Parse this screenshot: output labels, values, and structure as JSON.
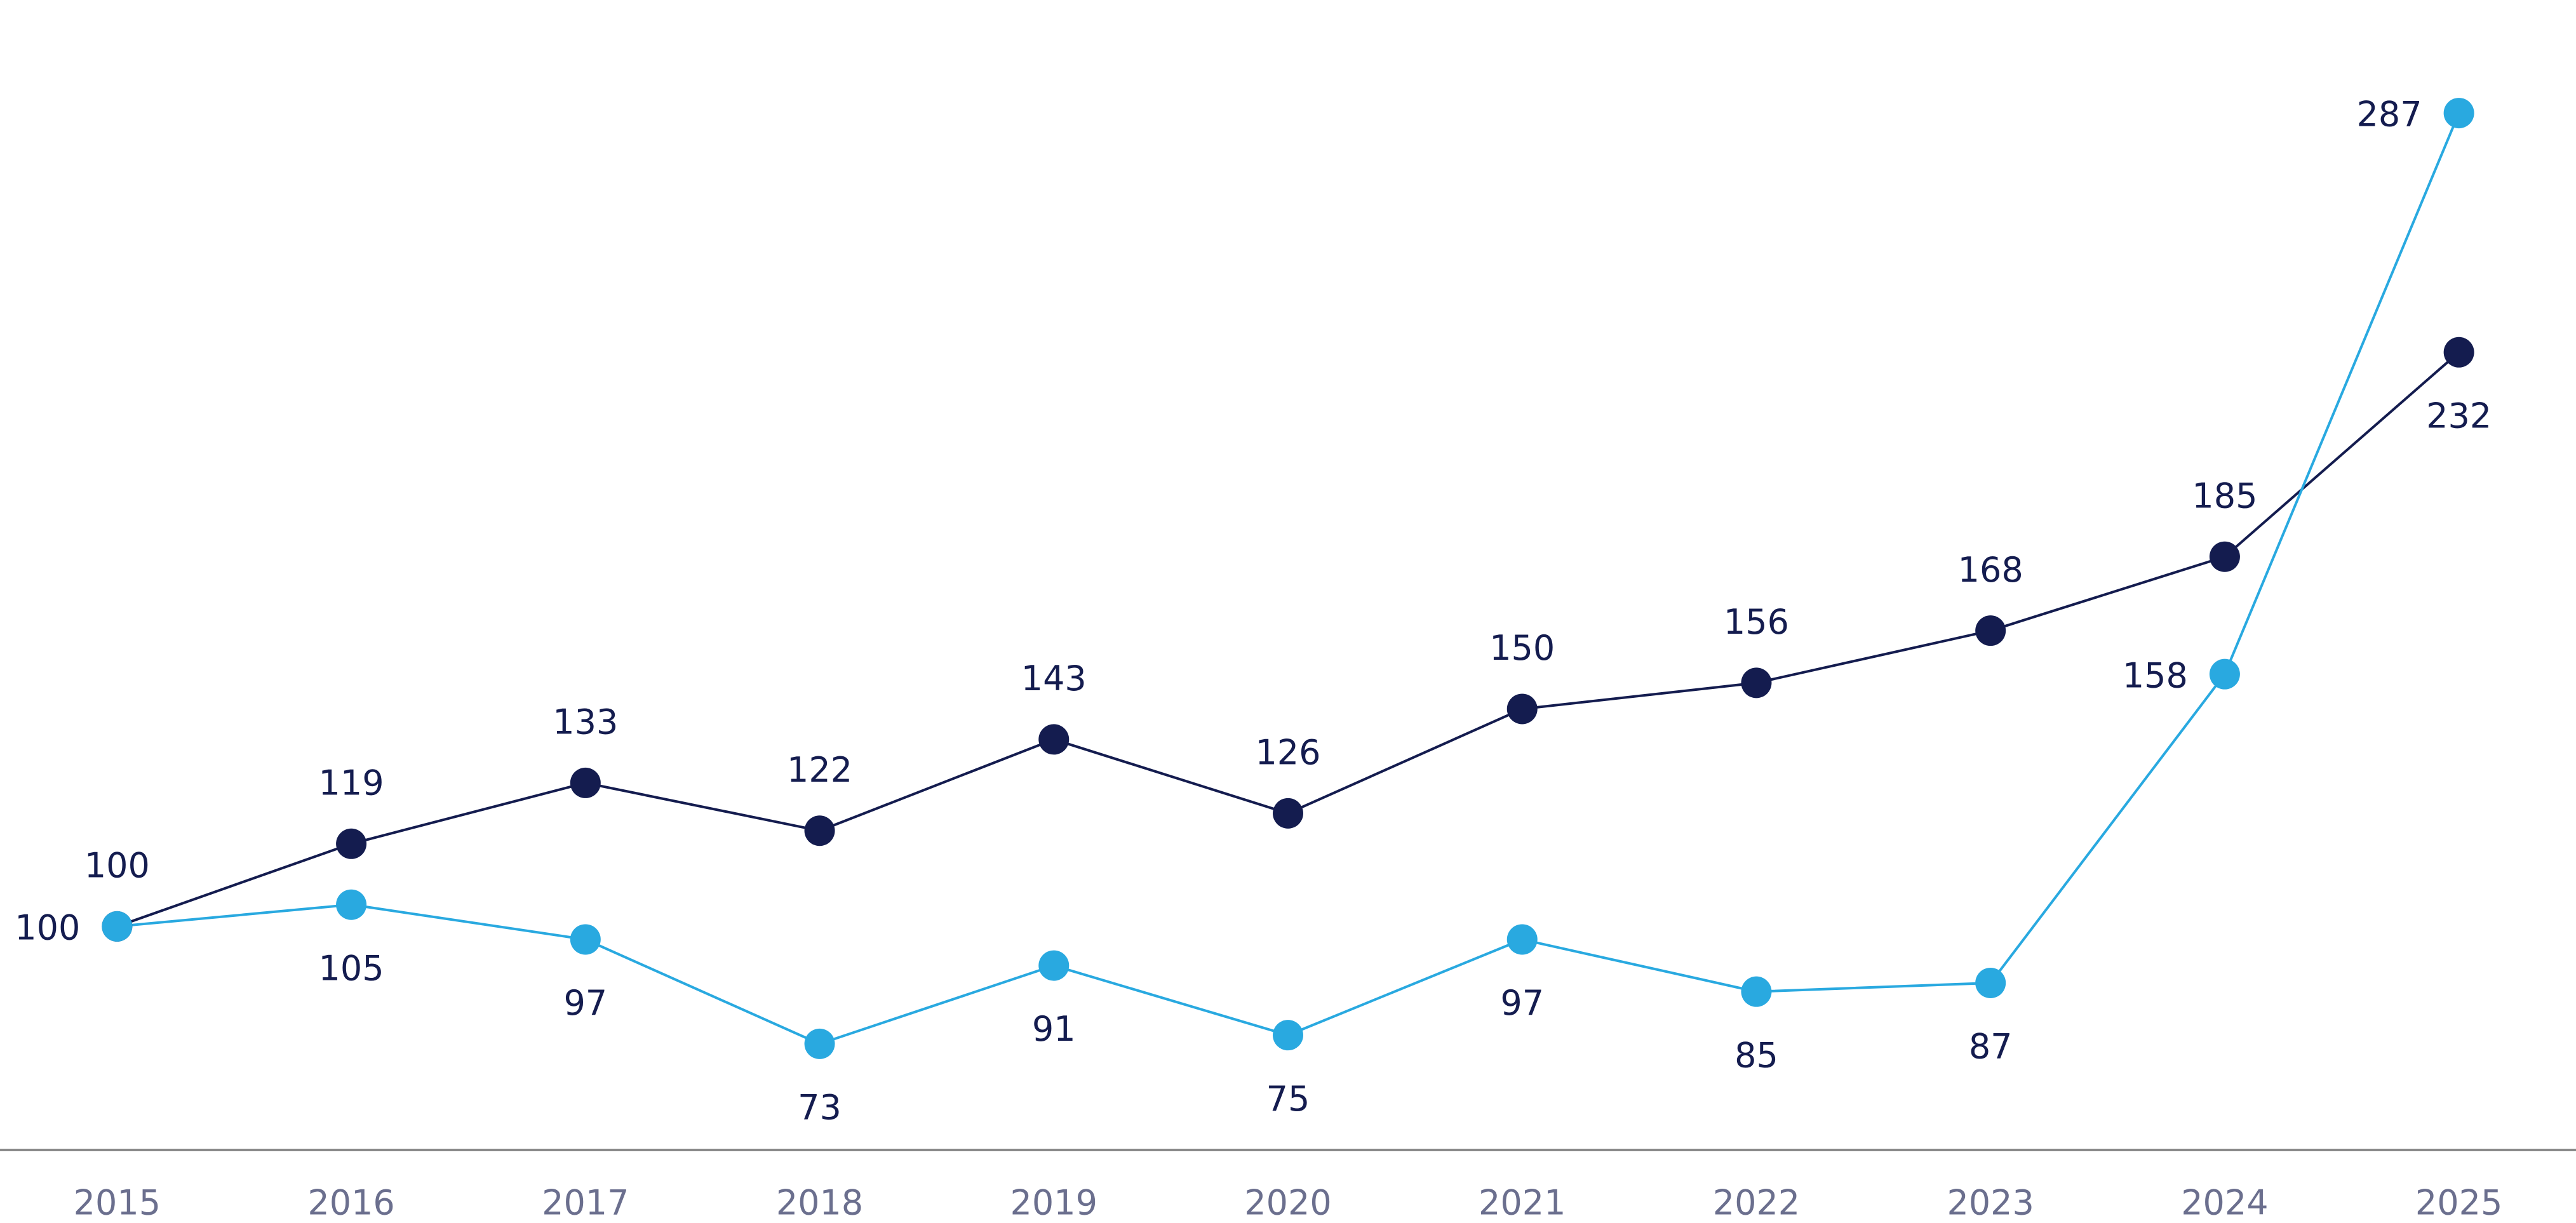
{
  "chart_data": {
    "type": "line",
    "x": [
      2015,
      2016,
      2017,
      2018,
      2019,
      2020,
      2021,
      2022,
      2023,
      2024,
      2025
    ],
    "series": [
      {
        "color": "#141c4f",
        "values": [
          100,
          119,
          133,
          122,
          143,
          126,
          150,
          156,
          168,
          185,
          232
        ]
      },
      {
        "color": "#29a9e0",
        "values": [
          100,
          105,
          97,
          73,
          91,
          75,
          97,
          85,
          87,
          158,
          287
        ]
      }
    ],
    "xlim": [
      2014.5,
      2025.5
    ],
    "xticks": [
      2015,
      2016,
      2017,
      2018,
      2019,
      2020,
      2021,
      2022,
      2023,
      2024,
      2025
    ],
    "ylim": [
      48.6,
      313
    ],
    "grid": false
  }
}
